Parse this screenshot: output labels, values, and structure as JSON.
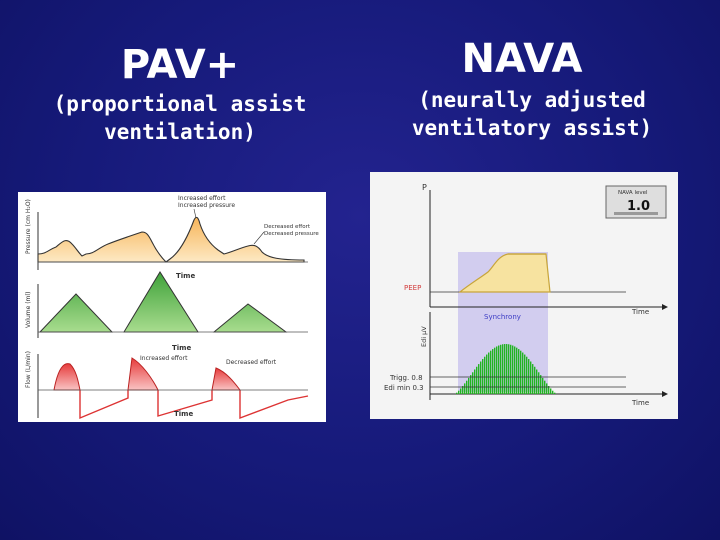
{
  "pav": {
    "title": "PAV+",
    "subtitle_line1": "(proportional assist",
    "subtitle_line2": "ventilation)",
    "chart": {
      "pressure_label": "Pressure (cm H₂O)",
      "volume_label": "Volume (ml)",
      "flow_label": "Flow (L/min)",
      "time_label": "Time",
      "annot_increased_effort": "Increased effort",
      "annot_increased_pressure": "Increased pressure",
      "annot_decreased_effort": "Decreased effort",
      "annot_decreased_pressure": "Decreased pressure",
      "annot_flow_increased": "Increased effort",
      "annot_flow_decreased": "Decreased effort",
      "colors": {
        "pressure": "#f7c97a",
        "volume": "#6ec05a",
        "flow": "#f07a7a"
      }
    }
  },
  "nava": {
    "title": "NAVA",
    "subtitle_line1": "(neurally adjusted",
    "subtitle_line2": "ventilatory assist)",
    "chart": {
      "p_label": "P",
      "peep_label": "PEEP",
      "time_label": "Time",
      "edi_label": "Edi µV",
      "synchrony_label": "Synchrony",
      "trigg_label": "Trigg. 0.8",
      "edi_min_label": "Edi min 0.3",
      "level_box_title": "NAVA level",
      "level_value": "1.0",
      "colors": {
        "pressure": "#f7e3a0",
        "edi": "#22b422",
        "window": "#c9c3ee"
      }
    }
  }
}
